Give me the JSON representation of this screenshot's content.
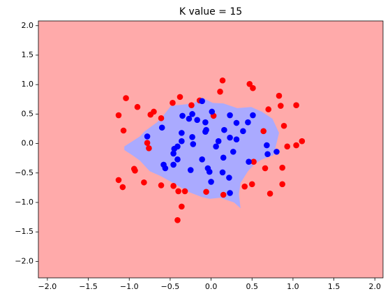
{
  "chart_data": {
    "type": "scatter",
    "title": "K value = 15",
    "background_color": "#ffaaaa",
    "xlim": [
      -2.11,
      2.1
    ],
    "ylim": [
      -2.28,
      2.08
    ],
    "xticks": [
      {
        "value": -2.0,
        "label": "−2.0"
      },
      {
        "value": -1.5,
        "label": "−1.5"
      },
      {
        "value": -1.0,
        "label": "−1.0"
      },
      {
        "value": -0.5,
        "label": "−0.5"
      },
      {
        "value": 0.0,
        "label": "0.0"
      },
      0.5,
      {
        "value": 1.0,
        "label": "1.0"
      },
      1.5,
      {
        "value": 2.0,
        "label": "2.0"
      }
    ],
    "yticks": [
      {
        "value": -2.0,
        "label": "−2.0"
      },
      {
        "value": -1.5,
        "label": "−1.5"
      },
      {
        "value": -1.0,
        "label": "−1.0"
      },
      {
        "value": -0.5,
        "label": "−0.5"
      },
      {
        "value": 0.0,
        "label": "0.0"
      },
      0.5,
      {
        "value": 1.0,
        "label": "1.0"
      },
      1.5,
      {
        "value": 2.0,
        "label": "2.0"
      }
    ],
    "regions": [
      {
        "color": "#aaaaff",
        "x": [
          -1.06,
          -0.87,
          -0.81,
          -0.66,
          -0.58,
          -0.49,
          -0.35,
          -0.21,
          -0.11,
          0.02,
          0.15,
          0.32,
          0.49,
          0.62,
          0.75,
          0.83,
          0.79,
          0.76,
          0.62,
          0.53,
          0.45,
          0.36,
          0.34,
          0.36,
          0.28,
          0.11,
          -0.02,
          -0.11,
          -0.28,
          -0.45,
          -0.62,
          -0.75,
          -0.87,
          -0.96,
          -1.06
        ],
        "y": [
          -0.05,
          0.12,
          0.21,
          0.36,
          0.48,
          0.64,
          0.66,
          0.68,
          0.78,
          0.69,
          0.68,
          0.6,
          0.62,
          0.54,
          0.42,
          0.18,
          -0.05,
          -0.2,
          -0.27,
          -0.35,
          -0.47,
          -0.67,
          -0.86,
          -1.1,
          -1.0,
          -0.92,
          -0.94,
          -0.91,
          -0.82,
          -0.68,
          -0.55,
          -0.47,
          -0.29,
          -0.2,
          -0.11
        ]
      }
    ],
    "series": [
      {
        "color": "#ff0000",
        "x": [
          0.14,
          0.47,
          0.11,
          0.51,
          -1.04,
          -0.38,
          0.83,
          -1.13,
          -0.9,
          -0.7,
          -0.74,
          -0.47,
          -0.24,
          -0.14,
          0.85,
          1.04,
          -0.61,
          0.03,
          0.7,
          -1.07,
          -0.78,
          -0.76,
          0.64,
          0.89,
          0.93,
          1.04,
          1.11,
          0.52,
          -0.94,
          -0.93,
          0.66,
          0.87,
          -0.82,
          -1.13,
          -1.08,
          -0.61,
          -0.46,
          -0.4,
          -0.32,
          -0.06,
          0.15,
          0.41,
          0.5,
          0.72,
          0.87,
          -0.36,
          -0.41
        ],
        "values": [
          1.07,
          1.01,
          0.88,
          0.94,
          0.77,
          0.79,
          0.81,
          0.48,
          0.62,
          0.54,
          0.49,
          0.69,
          0.65,
          0.73,
          0.64,
          0.65,
          0.43,
          0.47,
          0.58,
          0.22,
          0.01,
          -0.08,
          0.21,
          0.3,
          -0.05,
          -0.03,
          0.04,
          -0.31,
          -0.43,
          -0.46,
          -0.42,
          -0.41,
          -0.66,
          -0.62,
          -0.74,
          -0.71,
          -0.72,
          -0.81,
          -0.81,
          -0.82,
          -0.87,
          -0.73,
          -0.69,
          -0.85,
          -0.69,
          -1.07,
          -1.3
        ]
      },
      {
        "color": "#0000ff",
        "x": [
          -0.11,
          -0.35,
          -0.23,
          0.01,
          0.23,
          0.51,
          -0.6,
          -0.36,
          -0.27,
          -0.17,
          -0.07,
          -0.06,
          0.16,
          0.39,
          0.45,
          0.31,
          -0.07,
          0.68,
          0.8,
          -0.78,
          -0.41,
          -0.45,
          -0.46,
          -0.36,
          -0.23,
          -0.22,
          -0.41,
          -0.58,
          -0.56,
          -0.46,
          -0.25,
          -0.11,
          -0.04,
          -0.02,
          0.0,
          0.15,
          0.27,
          0.31,
          0.06,
          0.14,
          0.22,
          0.23,
          0.46,
          0.69,
          0.23,
          0.09
        ],
        "values": [
          0.72,
          0.47,
          0.5,
          0.54,
          0.48,
          0.48,
          0.27,
          0.18,
          0.42,
          0.4,
          0.36,
          0.23,
          0.23,
          0.21,
          0.36,
          0.35,
          0.2,
          -0.03,
          -0.14,
          0.12,
          -0.05,
          -0.09,
          -0.17,
          0.04,
          0.11,
          -0.01,
          -0.27,
          -0.36,
          -0.42,
          -0.36,
          -0.45,
          -0.27,
          -0.42,
          -0.48,
          -0.65,
          -0.24,
          -0.14,
          0.07,
          -0.05,
          -0.49,
          -0.58,
          -0.84,
          -0.31,
          -0.18,
          0.1,
          0.04
        ]
      }
    ]
  }
}
